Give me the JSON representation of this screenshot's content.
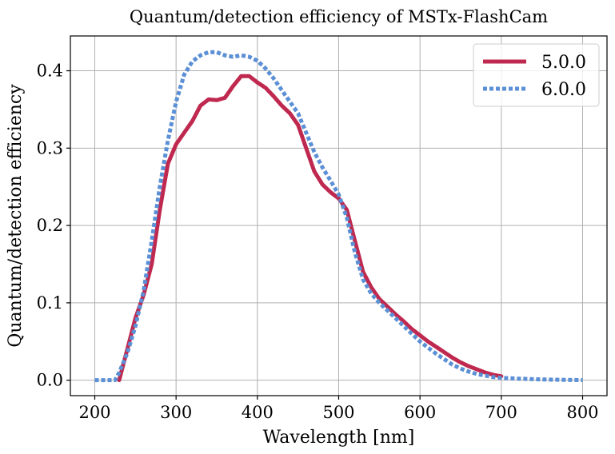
{
  "chart_data": {
    "type": "line",
    "title": "Quantum/detection efficiency of MSTx-FlashCam",
    "xlabel": "Wavelength [nm]",
    "ylabel": "Quantum/detection efficiency",
    "xlim": [
      170,
      830
    ],
    "ylim": [
      -0.02,
      0.445
    ],
    "xticks": [
      200,
      300,
      400,
      500,
      600,
      700,
      800
    ],
    "xtick_labels": [
      "200",
      "300",
      "400",
      "500",
      "600",
      "700",
      "800"
    ],
    "yticks": [
      0.0,
      0.1,
      0.2,
      0.3,
      0.4
    ],
    "ytick_labels": [
      "0.0",
      "0.1",
      "0.2",
      "0.3",
      "0.4"
    ],
    "grid": true,
    "legend_position": "top-right",
    "series": [
      {
        "name": "5.0.0",
        "color": "#c0294f",
        "style": "solid",
        "x": [
          230,
          240,
          250,
          260,
          270,
          280,
          290,
          300,
          310,
          320,
          330,
          340,
          350,
          360,
          370,
          380,
          390,
          400,
          410,
          420,
          430,
          440,
          450,
          460,
          470,
          480,
          490,
          500,
          510,
          520,
          530,
          540,
          550,
          560,
          570,
          580,
          590,
          600,
          610,
          620,
          630,
          640,
          650,
          660,
          670,
          680,
          690,
          700
        ],
        "y": [
          0.0,
          0.04,
          0.08,
          0.11,
          0.15,
          0.22,
          0.28,
          0.305,
          0.32,
          0.335,
          0.355,
          0.363,
          0.362,
          0.365,
          0.38,
          0.393,
          0.393,
          0.385,
          0.378,
          0.367,
          0.355,
          0.345,
          0.33,
          0.3,
          0.27,
          0.253,
          0.243,
          0.235,
          0.22,
          0.18,
          0.14,
          0.12,
          0.105,
          0.095,
          0.085,
          0.076,
          0.066,
          0.058,
          0.05,
          0.043,
          0.036,
          0.029,
          0.023,
          0.018,
          0.014,
          0.01,
          0.007,
          0.005
        ]
      },
      {
        "name": "6.0.0",
        "color": "#5b8fd6",
        "style": "dotted",
        "x": [
          200,
          210,
          220,
          225,
          230,
          240,
          250,
          260,
          270,
          280,
          290,
          300,
          310,
          320,
          330,
          340,
          350,
          360,
          370,
          380,
          390,
          400,
          410,
          420,
          430,
          440,
          450,
          460,
          470,
          480,
          490,
          500,
          510,
          520,
          530,
          540,
          550,
          560,
          570,
          580,
          590,
          600,
          610,
          620,
          630,
          640,
          650,
          660,
          670,
          680,
          690,
          700,
          720,
          750,
          800
        ],
        "y": [
          0.0,
          0.0,
          0.0,
          0.0,
          0.01,
          0.035,
          0.07,
          0.115,
          0.18,
          0.25,
          0.31,
          0.36,
          0.395,
          0.412,
          0.42,
          0.424,
          0.424,
          0.42,
          0.418,
          0.42,
          0.418,
          0.413,
          0.403,
          0.39,
          0.375,
          0.36,
          0.345,
          0.32,
          0.295,
          0.275,
          0.258,
          0.24,
          0.21,
          0.165,
          0.13,
          0.112,
          0.1,
          0.09,
          0.08,
          0.07,
          0.06,
          0.05,
          0.042,
          0.034,
          0.027,
          0.02,
          0.015,
          0.011,
          0.008,
          0.006,
          0.004,
          0.003,
          0.002,
          0.001,
          0.0
        ]
      }
    ]
  }
}
